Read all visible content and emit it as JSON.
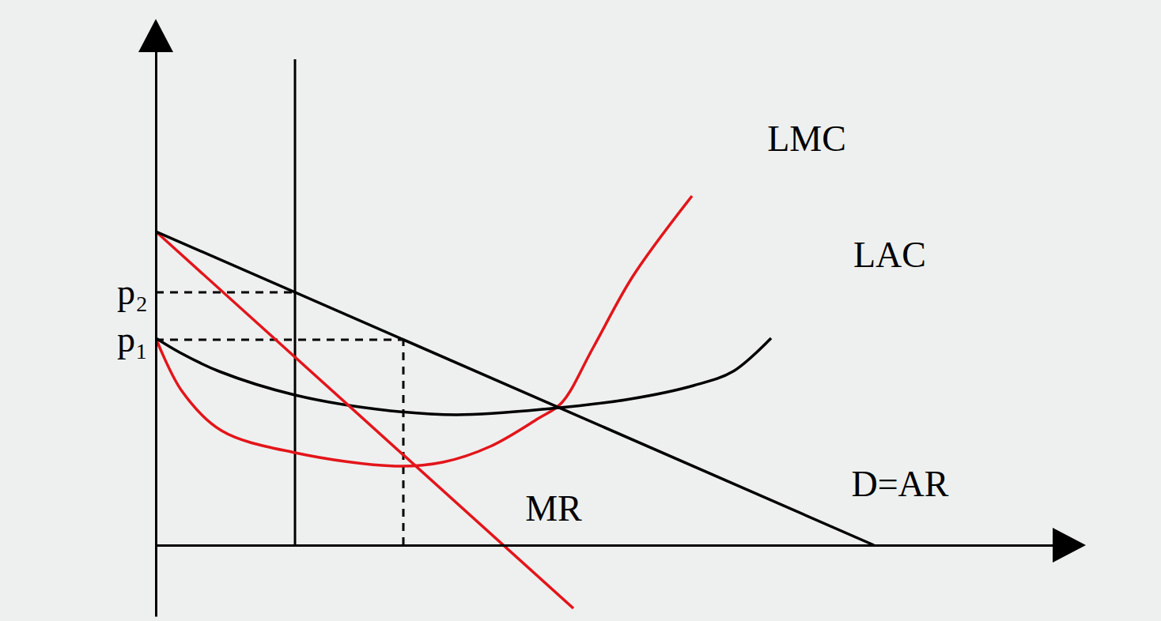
{
  "chart_data": {
    "type": "line",
    "xlim": [
      0,
      116
    ],
    "ylim": [
      -9,
      65
    ],
    "yticks": [
      {
        "value": 26,
        "label": "p₁"
      },
      {
        "value": 32,
        "label": "p₂"
      }
    ],
    "tick_labels": "y",
    "grid": false,
    "series": [
      {
        "name": "LMC",
        "color": "#e3151a",
        "line_style": "solid",
        "x": [
          0,
          3.3,
          8.3,
          17.6,
          30.3,
          36.3,
          42.3,
          48.3,
          51.3,
          55.3,
          60.3,
          67.8
        ],
        "values": [
          26.2,
          19.5,
          14.5,
          11.7,
          10,
          10.5,
          12.5,
          16,
          18,
          25,
          34,
          44.2
        ]
      },
      {
        "name": "LAC",
        "color": "#000000",
        "line_style": "solid",
        "x": [
          0,
          3,
          8,
          17.6,
          28,
          38,
          50,
          60,
          68,
          73,
          77.8
        ],
        "values": [
          26.2,
          24.4,
          22,
          19,
          17.2,
          16.5,
          17.3,
          18.5,
          20.2,
          22,
          26.2
        ]
      },
      {
        "name": "MR",
        "color": "#e3151a",
        "line_style": "solid",
        "x": [
          0,
          52.8
        ],
        "values": [
          39.7,
          -8
        ]
      },
      {
        "name": "D=AR",
        "color": "#000000",
        "line_style": "solid",
        "x": [
          0,
          90.8
        ],
        "values": [
          39.7,
          0
        ]
      }
    ],
    "reference_lines": [
      {
        "x": [
          17.6,
          17.6
        ],
        "values": [
          0,
          61.5
        ],
        "color": "#000000",
        "line_style": "solid"
      },
      {
        "x": [
          0,
          17.6
        ],
        "values": [
          32,
          32
        ],
        "color": "#000000",
        "line_style": "dashed"
      },
      {
        "x": [
          0,
          31.3
        ],
        "values": [
          26,
          26
        ],
        "color": "#000000",
        "line_style": "dashed"
      },
      {
        "x": [
          31.3,
          31.3
        ],
        "values": [
          0,
          26
        ],
        "color": "#000000",
        "line_style": "dashed"
      }
    ]
  }
}
